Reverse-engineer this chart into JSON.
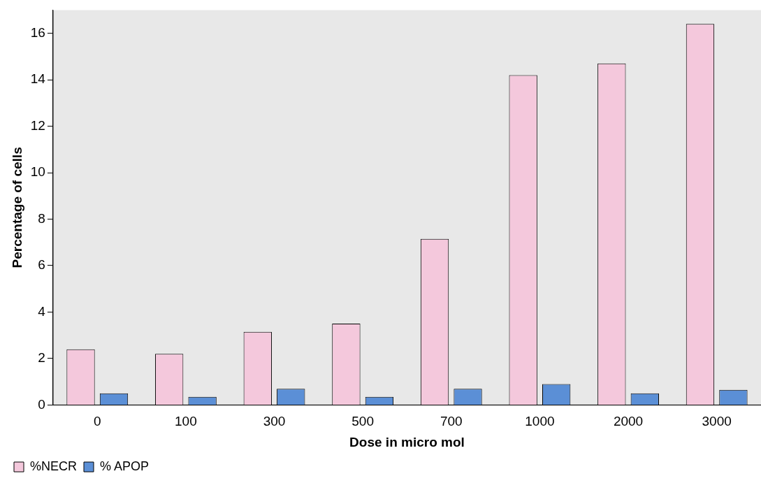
{
  "chart_data": {
    "type": "bar",
    "xlabel": "Dose in micro mol",
    "ylabel": "Percentage of cells",
    "categories": [
      "0",
      "100",
      "300",
      "500",
      "700",
      "1000",
      "2000",
      "3000"
    ],
    "series": [
      {
        "name": "%NECR",
        "color": "#f4c8dc",
        "values": [
          2.4,
          2.2,
          3.15,
          3.5,
          7.15,
          14.2,
          14.7,
          16.4
        ]
      },
      {
        "name": "% APOP",
        "color": "#5b8fd6",
        "values": [
          0.5,
          0.35,
          0.7,
          0.35,
          0.7,
          0.9,
          0.5,
          0.65
        ]
      }
    ],
    "ylim": [
      0,
      17
    ],
    "yticks": [
      0,
      2,
      4,
      6,
      8,
      10,
      12,
      14,
      16
    ],
    "grid": false,
    "legend": "bottom left"
  }
}
